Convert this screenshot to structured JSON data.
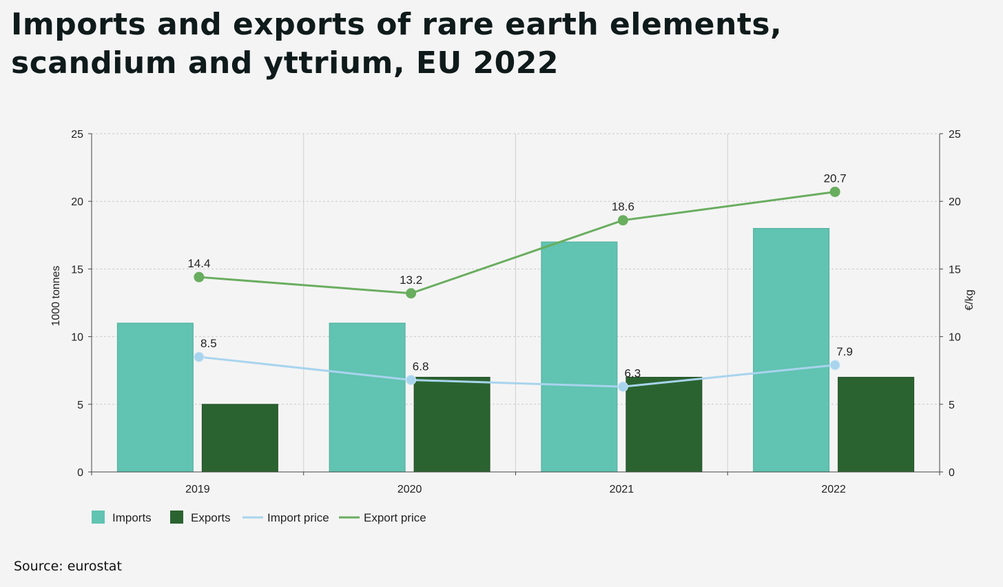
{
  "title": "Imports and exports of rare earth elements, scandium and yttrium, EU 2022",
  "source": "Source: eurostat",
  "colors": {
    "imports": "#61c3b1",
    "exports": "#2b6330",
    "import_price": "#a8d4ee",
    "export_price": "#69ad5f"
  },
  "chart_data": {
    "type": "bar",
    "categories": [
      "2019",
      "2020",
      "2021",
      "2022"
    ],
    "ylabel": "1000 tonnes",
    "ylabel_right": "€/kg",
    "ylim": [
      0,
      25
    ],
    "ylim_right": [
      0,
      25
    ],
    "yticks": [
      "0",
      "5",
      "10",
      "15",
      "20",
      "25"
    ],
    "grid": true,
    "legend_position": "bottom-left",
    "series": [
      {
        "name": "Imports",
        "type": "bar",
        "axis": "left",
        "values": [
          11,
          11,
          17,
          18
        ]
      },
      {
        "name": "Exports",
        "type": "bar",
        "axis": "left",
        "values": [
          5,
          7,
          7,
          7
        ]
      },
      {
        "name": "Import price",
        "type": "line",
        "axis": "right",
        "values": [
          8.5,
          6.8,
          6.3,
          7.9
        ],
        "labels": [
          "8.5",
          "6.8",
          "6.3",
          "7.9"
        ]
      },
      {
        "name": "Export price",
        "type": "line",
        "axis": "right",
        "values": [
          14.4,
          13.2,
          18.6,
          20.7
        ],
        "labels": [
          "14.4",
          "13.2",
          "18.6",
          "20.7"
        ]
      }
    ]
  }
}
